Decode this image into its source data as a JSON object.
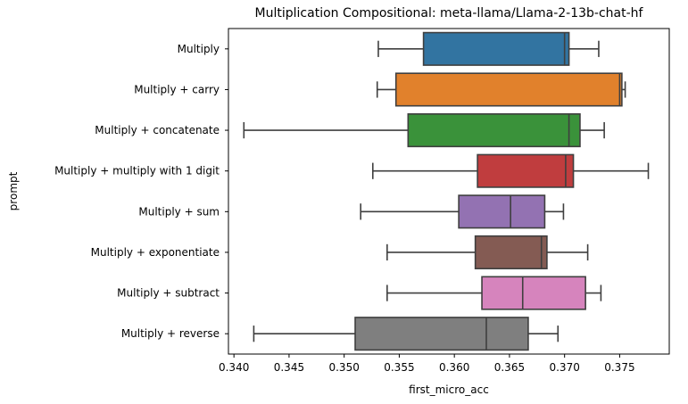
{
  "chart_data": {
    "type": "boxplot",
    "orientation": "horizontal",
    "title": "Multiplication Compositional: meta-llama/Llama-2-13b-chat-hf",
    "xlabel": "first_micro_acc",
    "ylabel": "prompt",
    "xlim": [
      0.3395,
      0.3795
    ],
    "xticks": [
      0.34,
      0.345,
      0.35,
      0.355,
      0.36,
      0.365,
      0.37,
      0.375
    ],
    "xtick_labels": [
      "0.340",
      "0.345",
      "0.350",
      "0.355",
      "0.360",
      "0.365",
      "0.370",
      "0.375"
    ],
    "grid": false,
    "categories": [
      "Multiply",
      "Multiply + carry",
      "Multiply + concatenate",
      "Multiply + multiply with 1 digit",
      "Multiply + sum",
      "Multiply + exponentiate",
      "Multiply + subtract",
      "Multiply + reverse"
    ],
    "boxes": [
      {
        "whisker_low": 0.3531,
        "q1": 0.3572,
        "median": 0.37,
        "q3": 0.3704,
        "whisker_high": 0.3731,
        "color": "#3274a1"
      },
      {
        "whisker_low": 0.353,
        "q1": 0.3547,
        "median": 0.375,
        "q3": 0.3752,
        "whisker_high": 0.3755,
        "color": "#e1812c"
      },
      {
        "whisker_low": 0.3409,
        "q1": 0.3558,
        "median": 0.3704,
        "q3": 0.3714,
        "whisker_high": 0.3736,
        "color": "#3a923a"
      },
      {
        "whisker_low": 0.3526,
        "q1": 0.3621,
        "median": 0.3701,
        "q3": 0.3708,
        "whisker_high": 0.3776,
        "color": "#c03d3e"
      },
      {
        "whisker_low": 0.3515,
        "q1": 0.3604,
        "median": 0.3651,
        "q3": 0.3682,
        "whisker_high": 0.3699,
        "color": "#9372b2"
      },
      {
        "whisker_low": 0.3539,
        "q1": 0.3619,
        "median": 0.3679,
        "q3": 0.3684,
        "whisker_high": 0.3721,
        "color": "#845b53"
      },
      {
        "whisker_low": 0.3539,
        "q1": 0.3625,
        "median": 0.3662,
        "q3": 0.3719,
        "whisker_high": 0.3733,
        "color": "#d684bd"
      },
      {
        "whisker_low": 0.3418,
        "q1": 0.351,
        "median": 0.3629,
        "q3": 0.3667,
        "whisker_high": 0.3694,
        "color": "#7f7f7f"
      }
    ]
  }
}
